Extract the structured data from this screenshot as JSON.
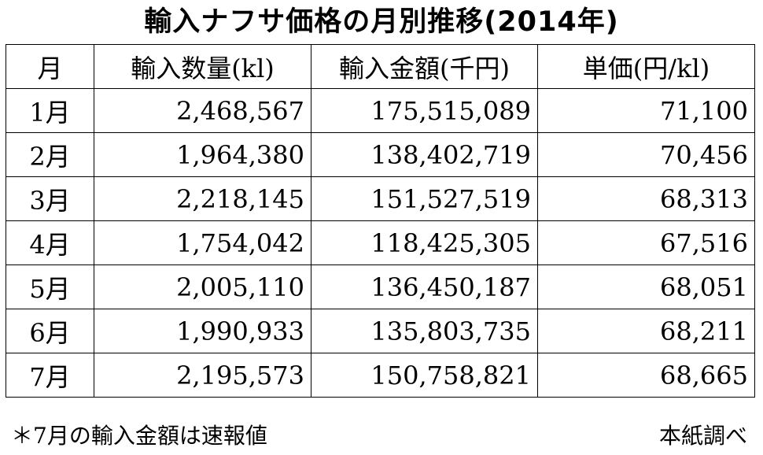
{
  "title": "輸入ナフサ価格の月別推移(2014年)",
  "table": {
    "headers": [
      "月",
      "輸入数量(kl)",
      "輸入金額(千円)",
      "単価(円/kl)"
    ],
    "rows": [
      {
        "month": "1月",
        "quantity": "2,468,567",
        "amount": "175,515,089",
        "unit_price": "71,100"
      },
      {
        "month": "2月",
        "quantity": "1,964,380",
        "amount": "138,402,719",
        "unit_price": "70,456"
      },
      {
        "month": "3月",
        "quantity": "2,218,145",
        "amount": "151,527,519",
        "unit_price": "68,313"
      },
      {
        "month": "4月",
        "quantity": "1,754,042",
        "amount": "118,425,305",
        "unit_price": "67,516"
      },
      {
        "month": "5月",
        "quantity": "2,005,110",
        "amount": "136,450,187",
        "unit_price": "68,051"
      },
      {
        "month": "6月",
        "quantity": "1,990,933",
        "amount": "135,803,735",
        "unit_price": "68,211"
      },
      {
        "month": "7月",
        "quantity": "2,195,573",
        "amount": "150,758,821",
        "unit_price": "68,665"
      }
    ]
  },
  "footnote": "＊7月の輸入金額は速報値",
  "source": "本紙調べ"
}
